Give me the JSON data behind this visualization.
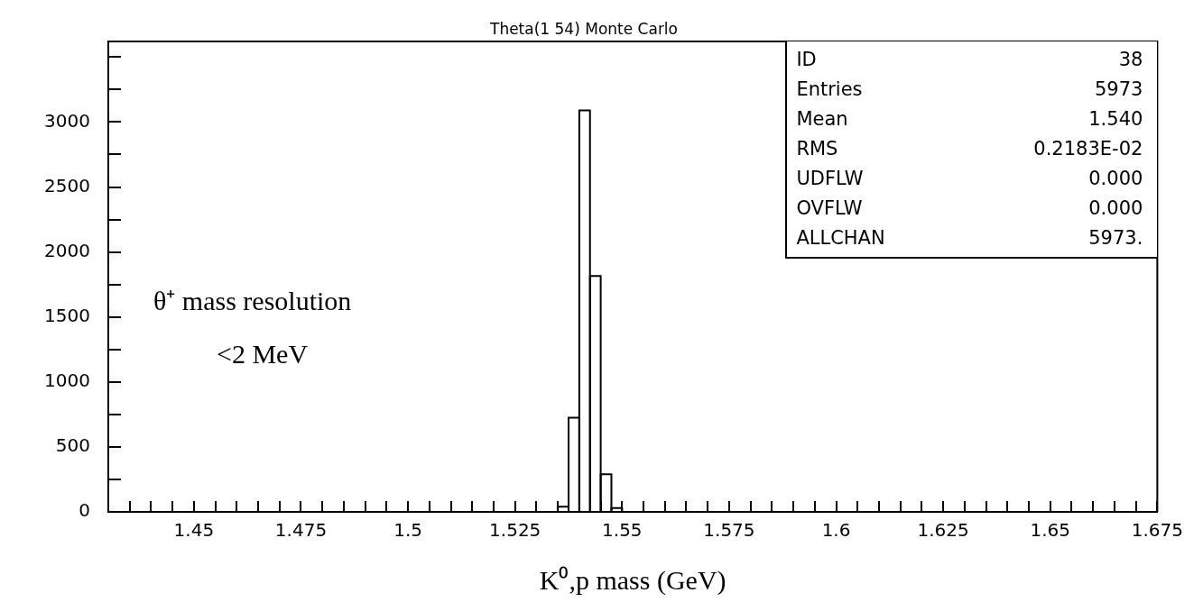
{
  "chart_data": {
    "type": "histogram",
    "title": "Theta(1 54) Monte Carlo",
    "xlabel": "K⁰,p mass (GeV)",
    "bins": [
      1.535,
      1.5375,
      1.54,
      1.5425,
      1.545,
      1.5475,
      1.55
    ],
    "values": [
      40,
      725,
      3090,
      1815,
      290,
      30
    ],
    "color": "#000000",
    "xlim": [
      1.43,
      1.675
    ],
    "xticks": [
      {
        "value": 1.435,
        "label": null
      },
      {
        "value": 1.44,
        "label": null
      },
      {
        "value": 1.445,
        "label": null
      },
      1.45,
      {
        "value": 1.455,
        "label": null
      },
      {
        "value": 1.46,
        "label": null
      },
      {
        "value": 1.465,
        "label": null
      },
      {
        "value": 1.47,
        "label": null
      },
      1.475,
      {
        "value": 1.48,
        "label": null
      },
      {
        "value": 1.485,
        "label": null
      },
      {
        "value": 1.49,
        "label": null
      },
      {
        "value": 1.495,
        "label": null
      },
      1.5,
      {
        "value": 1.505,
        "label": null
      },
      {
        "value": 1.51,
        "label": null
      },
      {
        "value": 1.515,
        "label": null
      },
      {
        "value": 1.52,
        "label": null
      },
      1.525,
      {
        "value": 1.53,
        "label": null
      },
      {
        "value": 1.535,
        "label": null
      },
      {
        "value": 1.54,
        "label": null
      },
      {
        "value": 1.545,
        "label": null
      },
      1.55,
      {
        "value": 1.555,
        "label": null
      },
      {
        "value": 1.56,
        "label": null
      },
      {
        "value": 1.565,
        "label": null
      },
      {
        "value": 1.57,
        "label": null
      },
      1.575,
      {
        "value": 1.58,
        "label": null
      },
      {
        "value": 1.585,
        "label": null
      },
      {
        "value": 1.59,
        "label": null
      },
      {
        "value": 1.595,
        "label": null
      },
      1.6,
      {
        "value": 1.605,
        "label": null
      },
      {
        "value": 1.61,
        "label": null
      },
      {
        "value": 1.615,
        "label": null
      },
      {
        "value": 1.62,
        "label": null
      },
      1.625,
      {
        "value": 1.63,
        "label": null
      },
      {
        "value": 1.635,
        "label": null
      },
      {
        "value": 1.64,
        "label": null
      },
      {
        "value": 1.645,
        "label": null
      },
      1.65,
      {
        "value": 1.655,
        "label": null
      },
      {
        "value": 1.66,
        "label": null
      },
      {
        "value": 1.665,
        "label": null
      },
      {
        "value": 1.67,
        "label": null
      },
      1.675
    ],
    "ylim": [
      0,
      3620
    ],
    "yticks": [
      0,
      {
        "value": 250,
        "label": null
      },
      500,
      {
        "value": 750,
        "label": null
      },
      1000,
      {
        "value": 1250,
        "label": null
      },
      1500,
      {
        "value": 1750,
        "label": null
      },
      2000,
      {
        "value": 2250,
        "label": null
      },
      2500,
      {
        "value": 2750,
        "label": null
      },
      3000,
      {
        "value": 3250,
        "label": null
      },
      {
        "value": 3500,
        "label": null
      }
    ],
    "grid": false,
    "legend": false,
    "annotations": [
      "ID\t38",
      "Entries\t5973",
      "Mean\t1.540",
      "RMS\t0.2183E-02",
      "UDFLW\t0.000",
      "OVFLW\t0.000",
      "ALLCHAN\t5973.",
      "θ⁺ mass resolution",
      "<2 MeV"
    ]
  }
}
